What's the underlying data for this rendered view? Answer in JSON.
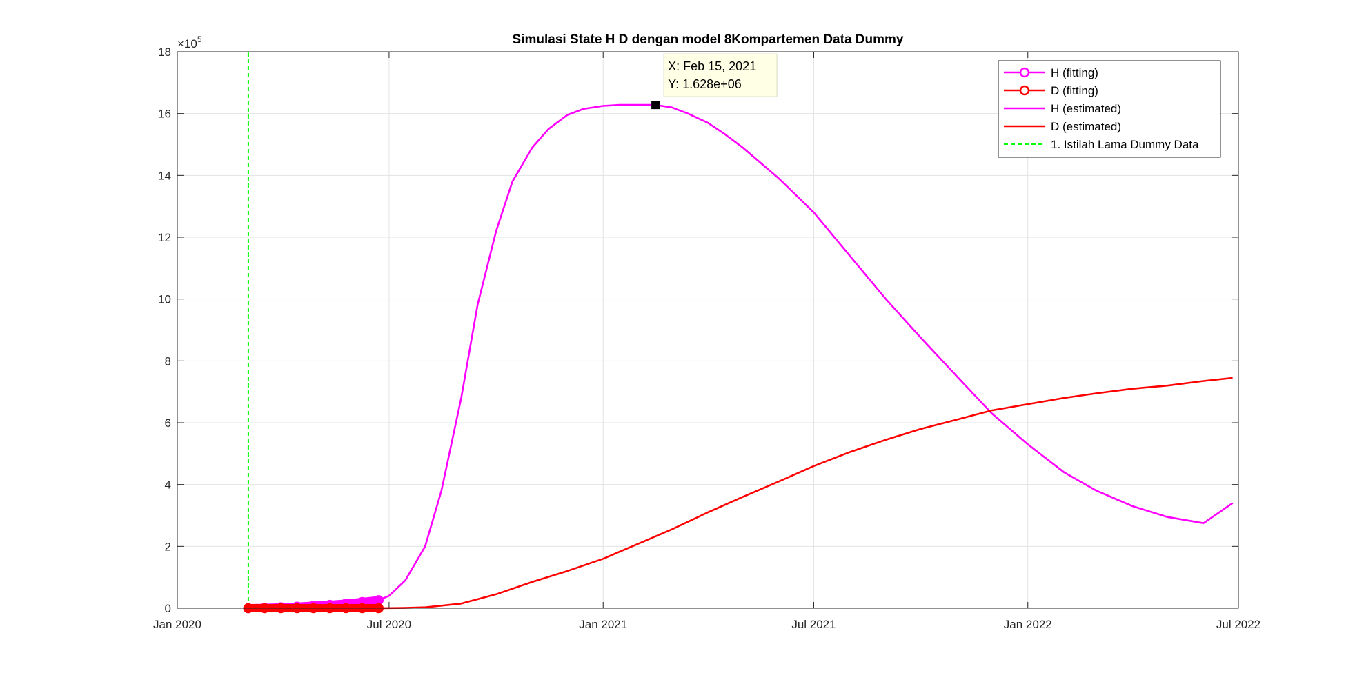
{
  "chart_data": {
    "type": "line",
    "title": "Simulasi State  H D dengan model 8Kompartemen Data Dummy",
    "xlabel": "",
    "ylabel": "",
    "grid": true,
    "legend_position": "top-right",
    "x_axis": {
      "type": "date",
      "range": [
        "2020-01-01",
        "2022-07-01"
      ],
      "tick_values": [
        "2020-01-01",
        "2020-07-01",
        "2021-01-01",
        "2021-07-01",
        "2022-01-01",
        "2022-07-01"
      ],
      "tick_labels": [
        "Jan 2020",
        "Jul 2020",
        "Jan 2021",
        "Jul 2021",
        "Jan 2022",
        "Jul 2022"
      ]
    },
    "y_axis": {
      "range": [
        0,
        18
      ],
      "exponent_label": "×10",
      "exponent_power": "5",
      "tick_values": [
        0,
        2,
        4,
        6,
        8,
        10,
        12,
        14,
        16,
        18
      ],
      "tick_labels": [
        "0",
        "2",
        "4",
        "6",
        "8",
        "10",
        "12",
        "14",
        "16",
        "18"
      ]
    },
    "series": [
      {
        "name": "H (fitting)",
        "color": "#ff00ff",
        "style": "solid-circle-markers",
        "x": [
          "2020-03-02",
          "2020-03-16",
          "2020-03-30",
          "2020-04-13",
          "2020-04-27",
          "2020-05-11",
          "2020-05-25",
          "2020-06-08",
          "2020-06-22"
        ],
        "y": [
          0.0,
          0.01,
          0.03,
          0.05,
          0.08,
          0.11,
          0.15,
          0.2,
          0.26
        ]
      },
      {
        "name": "D (fitting)",
        "color": "#ff0000",
        "style": "solid-circle-markers",
        "x": [
          "2020-03-02",
          "2020-03-16",
          "2020-03-30",
          "2020-04-13",
          "2020-04-27",
          "2020-05-11",
          "2020-05-25",
          "2020-06-08",
          "2020-06-22"
        ],
        "y": [
          0.0,
          0.0,
          0.0,
          0.0,
          0.0,
          0.0,
          0.0,
          0.0,
          0.0
        ]
      },
      {
        "name": "H (estimated)",
        "color": "#ff00ff",
        "style": "solid",
        "x": [
          "2020-06-22",
          "2020-07-01",
          "2020-07-15",
          "2020-08-01",
          "2020-08-15",
          "2020-09-01",
          "2020-09-15",
          "2020-10-01",
          "2020-10-15",
          "2020-11-01",
          "2020-11-15",
          "2020-12-01",
          "2020-12-15",
          "2021-01-01",
          "2021-01-15",
          "2021-02-01",
          "2021-02-15",
          "2021-03-01",
          "2021-03-15",
          "2021-04-01",
          "2021-04-15",
          "2021-05-01",
          "2021-06-01",
          "2021-07-01",
          "2021-08-01",
          "2021-09-01",
          "2021-10-01",
          "2021-11-01",
          "2021-12-01",
          "2022-01-01",
          "2022-02-01",
          "2022-03-01",
          "2022-04-01",
          "2022-05-01",
          "2022-06-01",
          "2022-06-26"
        ],
        "y": [
          0.26,
          0.4,
          0.9,
          2.0,
          3.8,
          6.8,
          9.8,
          12.2,
          13.8,
          14.9,
          15.5,
          15.95,
          16.15,
          16.25,
          16.28,
          16.28,
          16.28,
          16.2,
          16.0,
          15.7,
          15.35,
          14.9,
          13.9,
          12.8,
          11.4,
          10.0,
          8.75,
          7.5,
          6.3,
          5.3,
          4.4,
          3.8,
          3.3,
          2.95,
          2.75,
          3.4
        ]
      },
      {
        "name": "D (estimated)",
        "color": "#ff0000",
        "style": "solid",
        "x": [
          "2020-06-22",
          "2020-07-15",
          "2020-08-01",
          "2020-09-01",
          "2020-10-01",
          "2020-11-01",
          "2020-12-01",
          "2021-01-01",
          "2021-02-01",
          "2021-03-01",
          "2021-04-01",
          "2021-05-01",
          "2021-06-01",
          "2021-07-01",
          "2021-08-01",
          "2021-09-01",
          "2021-10-01",
          "2021-11-01",
          "2021-12-01",
          "2022-01-01",
          "2022-02-01",
          "2022-03-01",
          "2022-04-01",
          "2022-05-01",
          "2022-06-01",
          "2022-06-26"
        ],
        "y": [
          0.0,
          0.01,
          0.03,
          0.15,
          0.45,
          0.85,
          1.2,
          1.6,
          2.1,
          2.55,
          3.1,
          3.6,
          4.1,
          4.6,
          5.05,
          5.45,
          5.8,
          6.1,
          6.4,
          6.6,
          6.8,
          6.95,
          7.1,
          7.2,
          7.35,
          7.45
        ]
      },
      {
        "name": "1. Istilah Lama Dummy Data",
        "color": "#00ff00",
        "style": "dashed-vertical",
        "x": [
          "2020-03-02",
          "2020-03-02"
        ],
        "y": [
          0,
          18
        ]
      }
    ],
    "datatip": {
      "x_text": "X: Feb 15, 2021",
      "y_text": "Y: 1.628e+06",
      "x": "2021-02-15",
      "y": 16.28
    }
  }
}
